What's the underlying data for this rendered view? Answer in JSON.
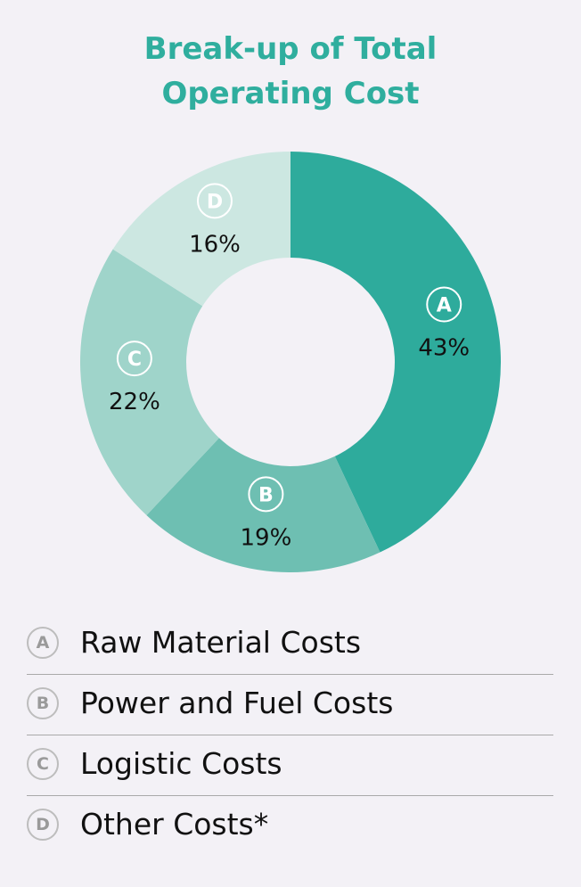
{
  "chart_data": {
    "type": "pie",
    "title": "Break-up of Total Operating Cost",
    "title_lines": [
      "Break-up of Total",
      "Operating Cost"
    ],
    "categories": [
      "A",
      "B",
      "C",
      "D"
    ],
    "values": [
      43,
      19,
      22,
      16
    ],
    "value_labels": [
      "43%",
      "19%",
      "22%",
      "16%"
    ],
    "colors": [
      "#2eab9c",
      "#6ebfb2",
      "#9fd4ca",
      "#cce7e1"
    ],
    "legend": [
      {
        "key": "A",
        "label": "Raw Material Costs"
      },
      {
        "key": "B",
        "label": "Power and Fuel Costs"
      },
      {
        "key": "C",
        "label": "Logistic Costs"
      },
      {
        "key": "D",
        "label": "Other Costs*"
      }
    ],
    "legend_placement": "bottom",
    "style": "donut"
  }
}
